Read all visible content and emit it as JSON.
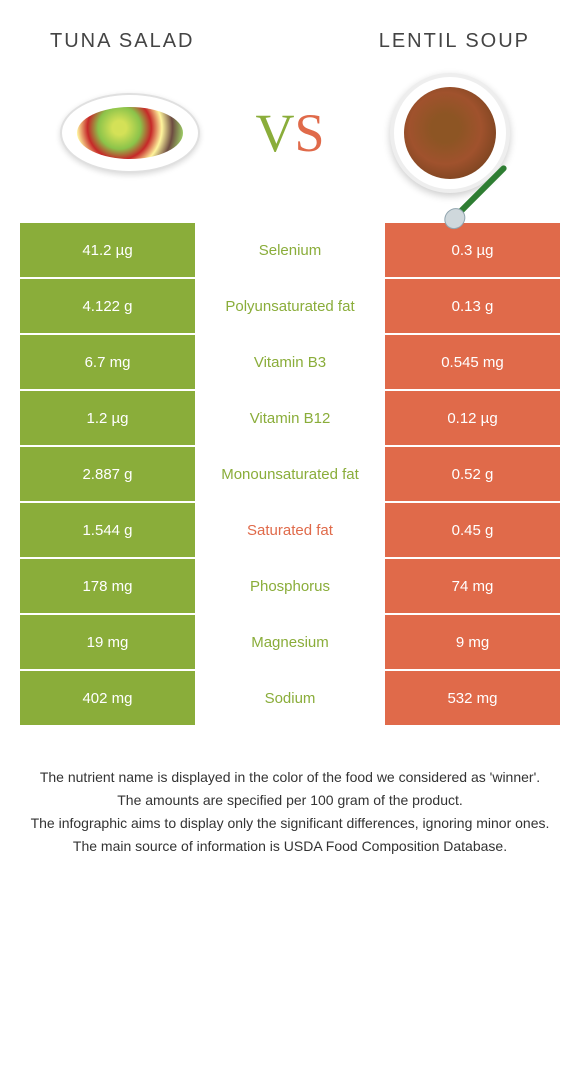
{
  "colors": {
    "green": "#8aad3a",
    "orange": "#e06a4a",
    "white": "#ffffff",
    "text": "#333333"
  },
  "header": {
    "left_title": "TUNA SALAD",
    "right_title": "LENTIL SOUP",
    "vs_v": "V",
    "vs_s": "S"
  },
  "rows": [
    {
      "left": "41.2 µg",
      "label": "Selenium",
      "right": "0.3 µg",
      "winner": "left"
    },
    {
      "left": "4.122 g",
      "label": "Polyunsaturated fat",
      "right": "0.13 g",
      "winner": "left"
    },
    {
      "left": "6.7 mg",
      "label": "Vitamin B3",
      "right": "0.545 mg",
      "winner": "left"
    },
    {
      "left": "1.2 µg",
      "label": "Vitamin B12",
      "right": "0.12 µg",
      "winner": "left"
    },
    {
      "left": "2.887 g",
      "label": "Monounsaturated fat",
      "right": "0.52 g",
      "winner": "left"
    },
    {
      "left": "1.544 g",
      "label": "Saturated fat",
      "right": "0.45 g",
      "winner": "right"
    },
    {
      "left": "178 mg",
      "label": "Phosphorus",
      "right": "74 mg",
      "winner": "left"
    },
    {
      "left": "19 mg",
      "label": "Magnesium",
      "right": "9 mg",
      "winner": "left"
    },
    {
      "left": "402 mg",
      "label": "Sodium",
      "right": "532 mg",
      "winner": "left"
    }
  ],
  "footer": {
    "line1": "The nutrient name is displayed in the color of the food we considered as 'winner'.",
    "line2": "The amounts are specified per 100 gram of the product.",
    "line3": "The infographic aims to display only the significant differences, ignoring minor ones.",
    "line4": "The main source of information is USDA Food Composition Database."
  }
}
